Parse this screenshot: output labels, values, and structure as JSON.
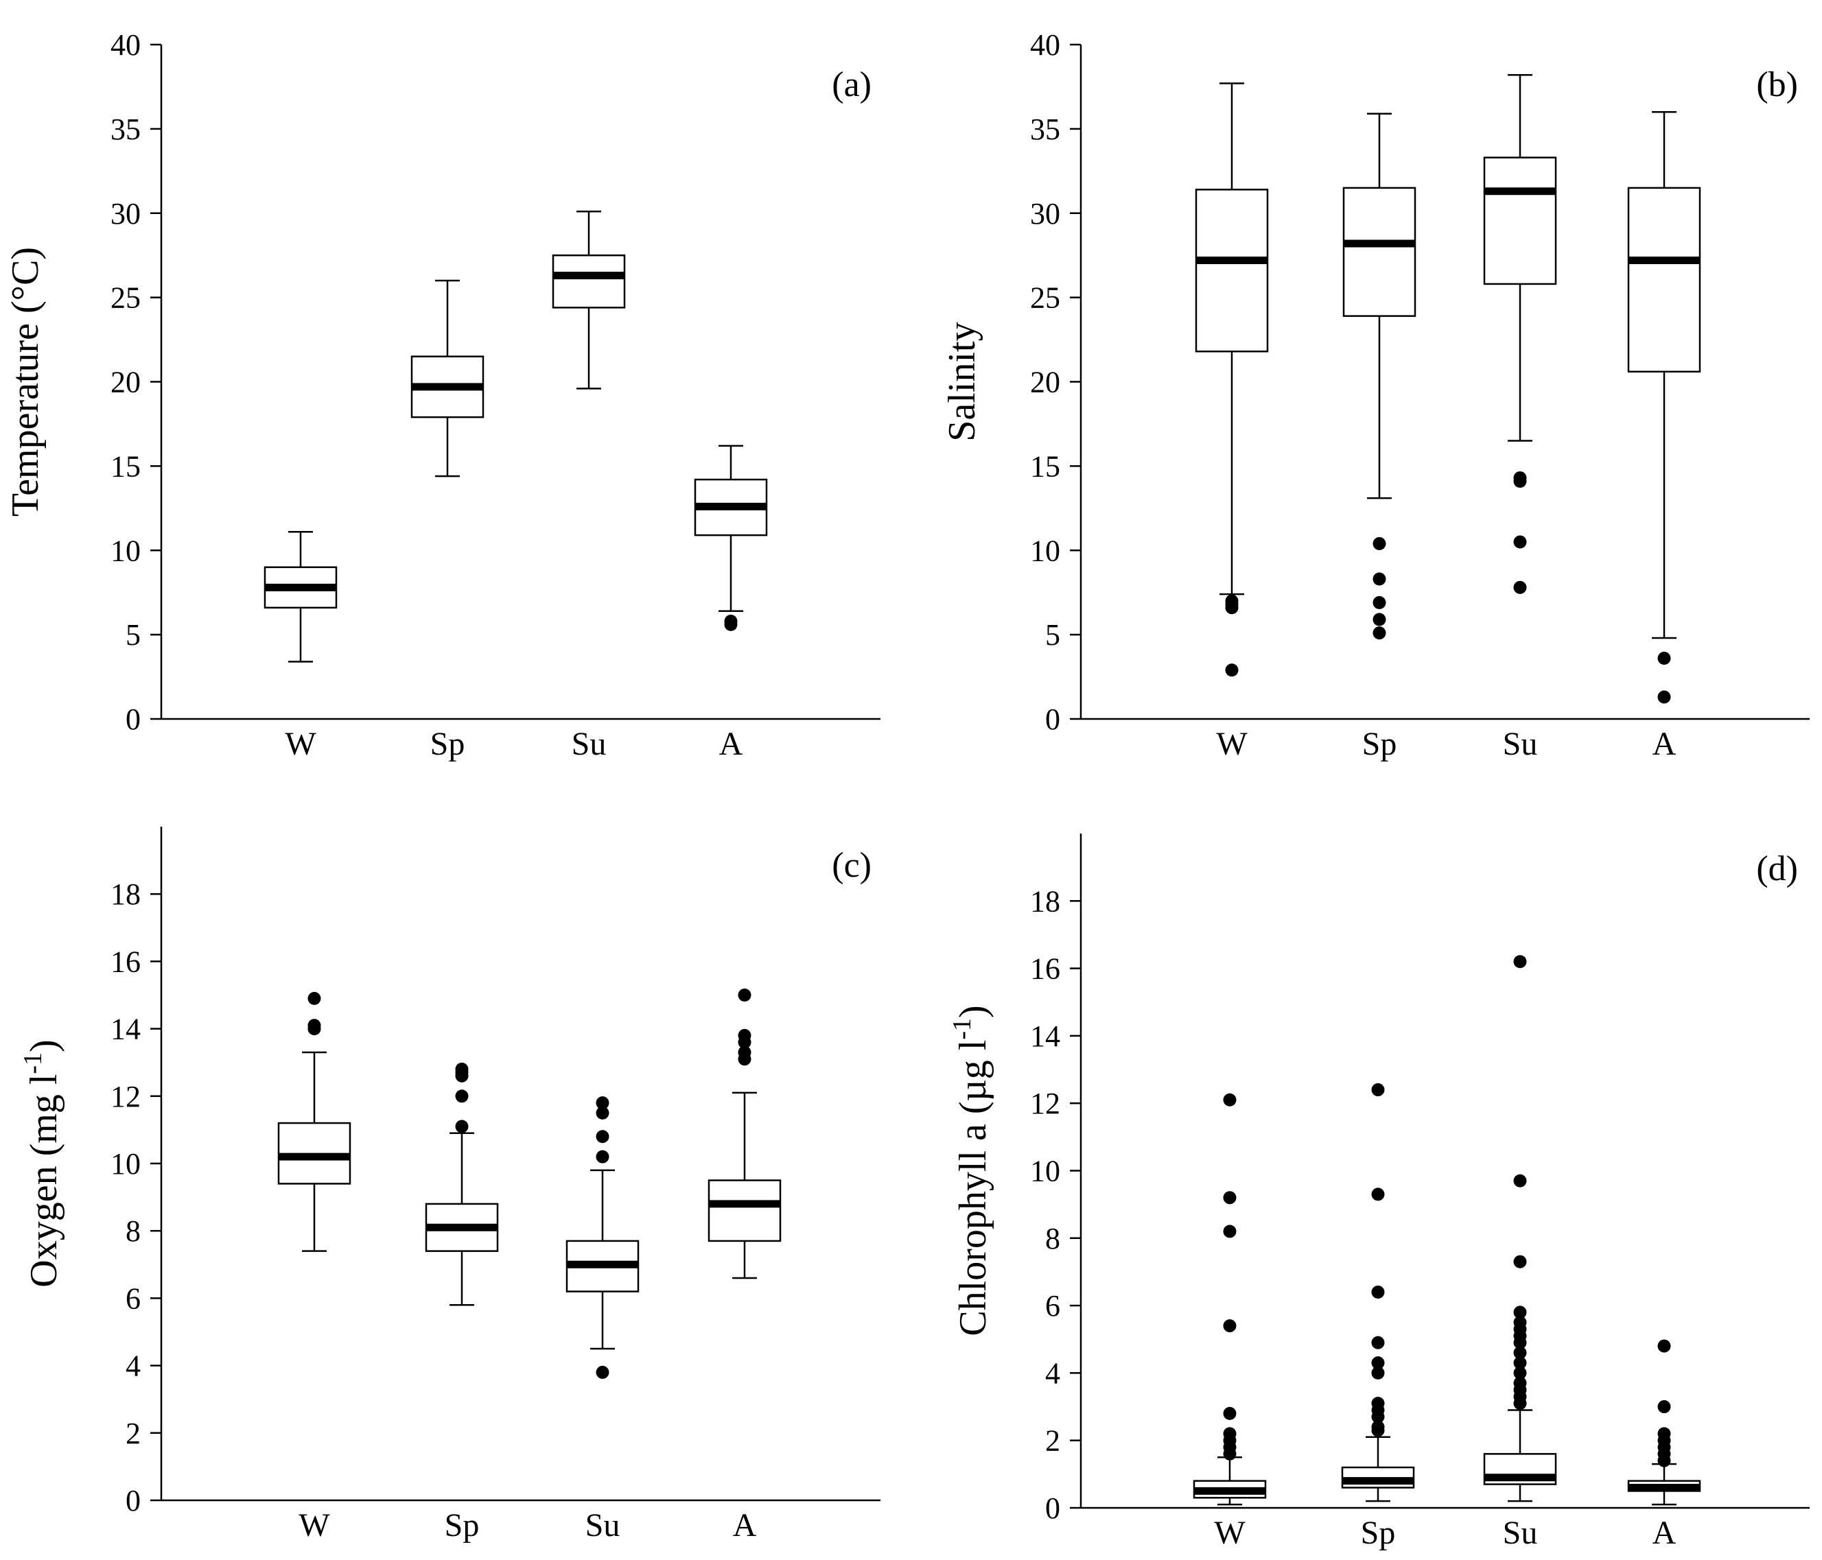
{
  "chart_data": [
    {
      "type": "boxplot",
      "panel_label": "(a)",
      "ylabel": "Temperature (°C)",
      "ylabel_parts": {
        "base": "Temperature (°C)"
      },
      "ylim": [
        0,
        40
      ],
      "yticks": [
        0,
        5,
        10,
        15,
        20,
        25,
        30,
        35,
        40
      ],
      "categories": [
        "W",
        "Sp",
        "Su",
        "A"
      ],
      "boxes": [
        {
          "q1": 6.6,
          "median": 7.8,
          "q3": 9.0,
          "whisker_low": 3.4,
          "whisker_high": 11.1,
          "outliers": []
        },
        {
          "q1": 17.9,
          "median": 19.7,
          "q3": 21.5,
          "whisker_low": 14.4,
          "whisker_high": 26.0,
          "outliers": []
        },
        {
          "q1": 24.4,
          "median": 26.3,
          "q3": 27.5,
          "whisker_low": 19.6,
          "whisker_high": 30.1,
          "outliers": []
        },
        {
          "q1": 10.9,
          "median": 12.6,
          "q3": 14.2,
          "whisker_low": 6.4,
          "whisker_high": 16.2,
          "outliers": [
            5.6,
            5.8
          ]
        }
      ]
    },
    {
      "type": "boxplot",
      "panel_label": "(b)",
      "ylabel": "Salinity",
      "ylabel_parts": {
        "base": "Salinity"
      },
      "ylim": [
        0,
        40
      ],
      "yticks": [
        0,
        5,
        10,
        15,
        20,
        25,
        30,
        35,
        40
      ],
      "categories": [
        "W",
        "Sp",
        "Su",
        "A"
      ],
      "boxes": [
        {
          "q1": 21.8,
          "median": 27.2,
          "q3": 31.4,
          "whisker_low": 7.4,
          "whisker_high": 37.7,
          "outliers": [
            7.0,
            6.8,
            6.6,
            2.9
          ]
        },
        {
          "q1": 23.9,
          "median": 28.2,
          "q3": 31.5,
          "whisker_low": 13.1,
          "whisker_high": 35.9,
          "outliers": [
            10.4,
            8.3,
            6.9,
            5.9,
            5.1
          ]
        },
        {
          "q1": 25.8,
          "median": 31.3,
          "q3": 33.3,
          "whisker_low": 16.5,
          "whisker_high": 38.2,
          "outliers": [
            14.3,
            14.1,
            10.5,
            7.8
          ]
        },
        {
          "q1": 20.6,
          "median": 27.2,
          "q3": 31.5,
          "whisker_low": 4.8,
          "whisker_high": 36.0,
          "outliers": [
            3.6,
            1.3
          ]
        }
      ]
    },
    {
      "type": "boxplot",
      "panel_label": "(c)",
      "ylabel": "Oxygen (mg l-1)",
      "ylabel_parts": {
        "base": "Oxygen (mg l",
        "sup": "-1",
        "tail": ")"
      },
      "ylim": [
        0,
        20
      ],
      "yticks": [
        0,
        2,
        4,
        6,
        8,
        10,
        12,
        14,
        16,
        18
      ],
      "categories": [
        "W",
        "Sp",
        "Su",
        "A"
      ],
      "boxes": [
        {
          "q1": 9.4,
          "median": 10.2,
          "q3": 11.2,
          "whisker_low": 7.4,
          "whisker_high": 13.3,
          "outliers": [
            14.0,
            14.1,
            14.9
          ]
        },
        {
          "q1": 7.4,
          "median": 8.1,
          "q3": 8.8,
          "whisker_low": 5.8,
          "whisker_high": 10.9,
          "outliers": [
            11.1,
            12.0,
            12.6,
            12.7,
            12.8
          ]
        },
        {
          "q1": 6.2,
          "median": 7.0,
          "q3": 7.7,
          "whisker_low": 4.5,
          "whisker_high": 9.8,
          "outliers": [
            10.2,
            10.8,
            11.5,
            11.8,
            3.8
          ]
        },
        {
          "q1": 7.7,
          "median": 8.8,
          "q3": 9.5,
          "whisker_low": 6.6,
          "whisker_high": 12.1,
          "outliers": [
            13.1,
            13.3,
            13.6,
            13.8,
            15.0
          ]
        }
      ]
    },
    {
      "type": "boxplot",
      "panel_label": "(d)",
      "ylabel": "Chlorophyll a (µg l-1)",
      "ylabel_parts": {
        "base": "Chlorophyll a (µg l",
        "sup": "-1",
        "tail": ")"
      },
      "ylim": [
        0,
        20
      ],
      "yticks": [
        0,
        2,
        4,
        6,
        8,
        10,
        12,
        14,
        16,
        18
      ],
      "categories": [
        "W",
        "Sp",
        "Su",
        "A"
      ],
      "boxes": [
        {
          "q1": 0.3,
          "median": 0.5,
          "q3": 0.8,
          "whisker_low": 0.1,
          "whisker_high": 1.5,
          "outliers": [
            1.6,
            1.8,
            2.0,
            2.2,
            2.8,
            5.4,
            8.2,
            9.2,
            12.1
          ]
        },
        {
          "q1": 0.6,
          "median": 0.8,
          "q3": 1.2,
          "whisker_low": 0.2,
          "whisker_high": 2.1,
          "outliers": [
            2.3,
            2.4,
            2.7,
            2.9,
            3.1,
            4.0,
            4.3,
            4.9,
            6.4,
            9.3,
            12.4
          ]
        },
        {
          "q1": 0.7,
          "median": 0.9,
          "q3": 1.6,
          "whisker_low": 0.2,
          "whisker_high": 2.9,
          "outliers": [
            3.1,
            3.3,
            3.5,
            3.7,
            4.0,
            4.3,
            4.6,
            4.9,
            5.1,
            5.3,
            5.5,
            5.8,
            7.3,
            9.7,
            16.2
          ]
        },
        {
          "q1": 0.5,
          "median": 0.6,
          "q3": 0.8,
          "whisker_low": 0.1,
          "whisker_high": 1.3,
          "outliers": [
            1.4,
            1.6,
            1.8,
            2.0,
            2.2,
            3.0,
            4.8
          ]
        }
      ]
    }
  ]
}
